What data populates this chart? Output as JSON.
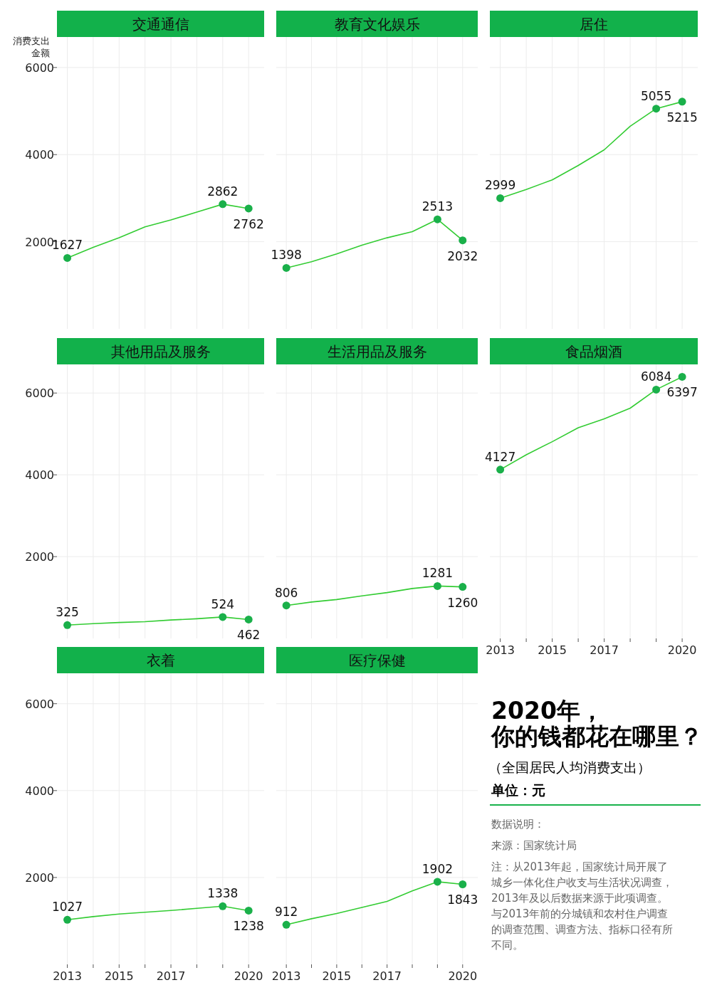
{
  "chart_data": [
    {
      "type": "line",
      "title": "交通通信",
      "ylabel": "消费支出金额",
      "x": [
        2013,
        2014,
        2015,
        2016,
        2017,
        2018,
        2019,
        2020
      ],
      "xlim": [
        2012.6,
        2020.6
      ],
      "xticks": [
        2013,
        {
          "value": 2014,
          "label": null
        },
        2015,
        {
          "value": 2016,
          "label": null
        },
        2017,
        {
          "value": 2018,
          "label": null
        },
        {
          "value": 2019,
          "label": null
        },
        2020
      ],
      "ylim": [
        0,
        6700
      ],
      "yticks": [
        2000,
        4000,
        6000
      ],
      "grid": true,
      "tick_labels": "y",
      "series": [
        {
          "color": "#33cc33",
          "values": [
            1627,
            1870,
            2090,
            2340,
            2500,
            2680,
            2862,
            2762
          ]
        },
        {
          "type": "scatter",
          "marker": "circle",
          "color": "#1ab04a",
          "x": [
            2013,
            2019,
            2020
          ],
          "values": [
            1627,
            2862,
            2762
          ],
          "value_labels": [
            "1627",
            "2862",
            "2762"
          ]
        }
      ]
    },
    {
      "type": "line",
      "title": "教育文化娱乐",
      "x": [
        2013,
        2014,
        2015,
        2016,
        2017,
        2018,
        2019,
        2020
      ],
      "xlim": [
        2012.6,
        2020.6
      ],
      "xticks": [
        2013,
        {
          "value": 2014,
          "label": null
        },
        2015,
        {
          "value": 2016,
          "label": null
        },
        2017,
        {
          "value": 2018,
          "label": null
        },
        {
          "value": 2019,
          "label": null
        },
        2020
      ],
      "ylim": [
        0,
        6700
      ],
      "yticks": [
        2000,
        4000,
        6000
      ],
      "grid": true,
      "tick_labels": false,
      "series": [
        {
          "color": "#33cc33",
          "values": [
            1398,
            1540,
            1720,
            1920,
            2090,
            2230,
            2513,
            2032
          ]
        },
        {
          "type": "scatter",
          "marker": "circle",
          "color": "#1ab04a",
          "x": [
            2013,
            2019,
            2020
          ],
          "values": [
            1398,
            2513,
            2032
          ],
          "value_labels": [
            "1398",
            "2513",
            "2032"
          ]
        }
      ]
    },
    {
      "type": "line",
      "title": "居住",
      "x": [
        2013,
        2014,
        2015,
        2016,
        2017,
        2018,
        2019,
        2020
      ],
      "xlim": [
        2012.6,
        2020.6
      ],
      "xticks": [
        2013,
        {
          "value": 2014,
          "label": null
        },
        2015,
        {
          "value": 2016,
          "label": null
        },
        2017,
        {
          "value": 2018,
          "label": null
        },
        {
          "value": 2019,
          "label": null
        },
        2020
      ],
      "ylim": [
        0,
        6700
      ],
      "yticks": [
        2000,
        4000,
        6000
      ],
      "grid": true,
      "tick_labels": false,
      "series": [
        {
          "color": "#33cc33",
          "values": [
            2999,
            3200,
            3420,
            3750,
            4110,
            4650,
            5055,
            5215
          ]
        },
        {
          "type": "scatter",
          "marker": "circle",
          "color": "#1ab04a",
          "x": [
            2013,
            2019,
            2020
          ],
          "values": [
            2999,
            5055,
            5215
          ],
          "value_labels": [
            "2999",
            "5055",
            "5215"
          ]
        }
      ]
    },
    {
      "type": "line",
      "title": "其他用品及服务",
      "x": [
        2013,
        2014,
        2015,
        2016,
        2017,
        2018,
        2019,
        2020
      ],
      "xlim": [
        2012.6,
        2020.6
      ],
      "xticks": [
        2013,
        {
          "value": 2014,
          "label": null
        },
        2015,
        {
          "value": 2016,
          "label": null
        },
        2017,
        {
          "value": 2018,
          "label": null
        },
        {
          "value": 2019,
          "label": null
        },
        2020
      ],
      "ylim": [
        0,
        6700
      ],
      "yticks": [
        2000,
        4000,
        6000
      ],
      "grid": true,
      "tick_labels": "y",
      "series": [
        {
          "color": "#33cc33",
          "values": [
            325,
            360,
            390,
            410,
            450,
            480,
            524,
            462
          ]
        },
        {
          "type": "scatter",
          "marker": "circle",
          "color": "#1ab04a",
          "x": [
            2013,
            2019,
            2020
          ],
          "values": [
            325,
            524,
            462
          ],
          "value_labels": [
            "325",
            "524",
            "462"
          ]
        }
      ]
    },
    {
      "type": "line",
      "title": "生活用品及服务",
      "x": [
        2013,
        2014,
        2015,
        2016,
        2017,
        2018,
        2019,
        2020
      ],
      "xlim": [
        2012.6,
        2020.6
      ],
      "xticks": [
        2013,
        {
          "value": 2014,
          "label": null
        },
        2015,
        {
          "value": 2016,
          "label": null
        },
        2017,
        {
          "value": 2018,
          "label": null
        },
        {
          "value": 2019,
          "label": null
        },
        2020
      ],
      "ylim": [
        0,
        6700
      ],
      "yticks": [
        2000,
        4000,
        6000
      ],
      "grid": true,
      "tick_labels": false,
      "series": [
        {
          "color": "#33cc33",
          "values": [
            806,
            890,
            950,
            1040,
            1120,
            1220,
            1281,
            1260
          ]
        },
        {
          "type": "scatter",
          "marker": "circle",
          "color": "#1ab04a",
          "x": [
            2013,
            2019,
            2020
          ],
          "values": [
            806,
            1281,
            1260
          ],
          "value_labels": [
            "806",
            "1281",
            "1260"
          ]
        }
      ]
    },
    {
      "type": "line",
      "title": "食品烟酒",
      "x": [
        2013,
        2014,
        2015,
        2016,
        2017,
        2018,
        2019,
        2020
      ],
      "xlim": [
        2012.6,
        2020.6
      ],
      "xticks": [
        2013,
        {
          "value": 2014,
          "label": null
        },
        2015,
        {
          "value": 2016,
          "label": null
        },
        2017,
        {
          "value": 2018,
          "label": null
        },
        {
          "value": 2019,
          "label": null
        },
        2020
      ],
      "ylim": [
        0,
        6700
      ],
      "yticks": [
        2000,
        4000,
        6000
      ],
      "grid": true,
      "tick_labels": "x",
      "series": [
        {
          "color": "#33cc33",
          "values": [
            4127,
            4490,
            4810,
            5150,
            5370,
            5630,
            6084,
            6397
          ]
        },
        {
          "type": "scatter",
          "marker": "circle",
          "color": "#1ab04a",
          "x": [
            2013,
            2019,
            2020
          ],
          "values": [
            4127,
            6084,
            6397
          ],
          "value_labels": [
            "4127",
            "6084",
            "6397"
          ]
        }
      ]
    },
    {
      "type": "line",
      "title": "衣着",
      "x": [
        2013,
        2014,
        2015,
        2016,
        2017,
        2018,
        2019,
        2020
      ],
      "xlim": [
        2012.6,
        2020.6
      ],
      "xticks": [
        2013,
        {
          "value": 2014,
          "label": null
        },
        2015,
        {
          "value": 2016,
          "label": null
        },
        2017,
        {
          "value": 2018,
          "label": null
        },
        {
          "value": 2019,
          "label": null
        },
        2020
      ],
      "ylim": [
        0,
        6700
      ],
      "yticks": [
        2000,
        4000,
        6000
      ],
      "grid": true,
      "series": [
        {
          "color": "#33cc33",
          "values": [
            1027,
            1100,
            1160,
            1200,
            1240,
            1290,
            1338,
            1238
          ]
        },
        {
          "type": "scatter",
          "marker": "circle",
          "color": "#1ab04a",
          "x": [
            2013,
            2019,
            2020
          ],
          "values": [
            1027,
            1338,
            1238
          ],
          "value_labels": [
            "1027",
            "1338",
            "1238"
          ]
        }
      ]
    },
    {
      "type": "line",
      "title": "医疗保健",
      "x": [
        2013,
        2014,
        2015,
        2016,
        2017,
        2018,
        2019,
        2020
      ],
      "xlim": [
        2012.6,
        2020.6
      ],
      "xticks": [
        2013,
        {
          "value": 2014,
          "label": null
        },
        2015,
        {
          "value": 2016,
          "label": null
        },
        2017,
        {
          "value": 2018,
          "label": null
        },
        {
          "value": 2019,
          "label": null
        },
        2020
      ],
      "ylim": [
        0,
        6700
      ],
      "yticks": [
        2000,
        4000,
        6000
      ],
      "grid": true,
      "tick_labels": "x",
      "series": [
        {
          "color": "#33cc33",
          "values": [
            912,
            1050,
            1170,
            1310,
            1450,
            1690,
            1902,
            1843
          ]
        },
        {
          "type": "scatter",
          "marker": "circle",
          "color": "#1ab04a",
          "x": [
            2013,
            2019,
            2020
          ],
          "values": [
            912,
            1902,
            1843
          ],
          "value_labels": [
            "912",
            "1902",
            "1843"
          ]
        }
      ]
    },
    {
      "type": "other",
      "title": "2020年，你的钱都花在哪里？",
      "subtitle": "（全国居民人均消费支出）",
      "annotations": [
        "单位：元",
        "数据说明：",
        "来源：国家统计局",
        "注：从2013年起，国家统计局开展了城乡一体化住户收支与生活状况调查，2013年及以后数据来源于此项调查。与2013年前的分城镇和农村住户调查的调查范围、调查方法、指标口径有所不同。"
      ]
    }
  ]
}
